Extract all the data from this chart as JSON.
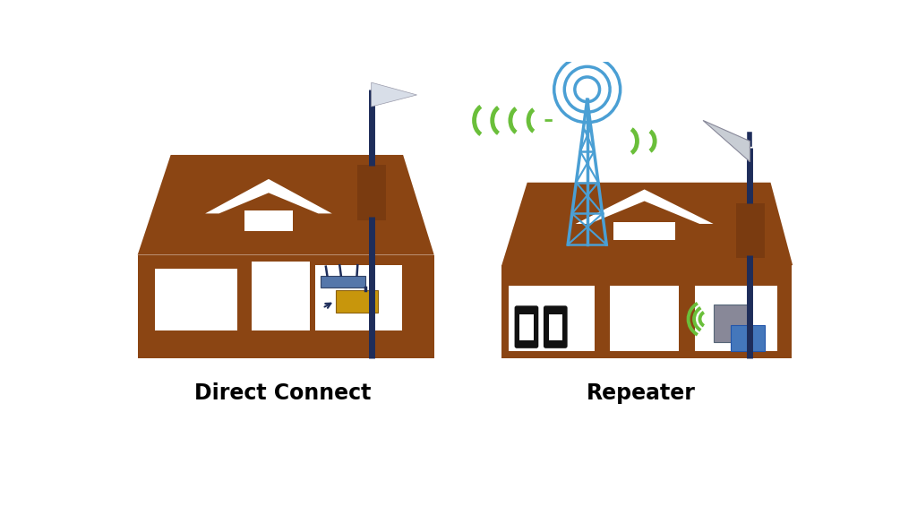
{
  "bg_color": "#ffffff",
  "brown": "#8B4513",
  "dark_navy": "#1e2d5a",
  "white": "#ffffff",
  "green": "#6abf3a",
  "blue_tower": "#4a9fd4",
  "gray_ant": "#c8cdd4",
  "label_left": "Direct Connect",
  "label_right": "Repeater",
  "label_fontsize": 17,
  "router_color": "#5577aa",
  "amp_gold": "#c8960c",
  "amp_gray": "#888898",
  "amp_blue": "#4477bb",
  "phone_color": "#111111"
}
